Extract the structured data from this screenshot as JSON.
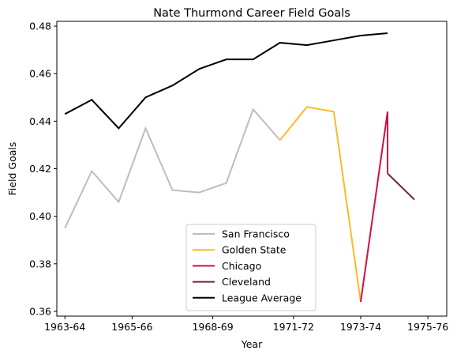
{
  "chart_data": {
    "type": "line",
    "title": "Nate Thurmond Career Field Goals",
    "xlabel": "Year",
    "ylabel": "Field Goals",
    "xlim": [
      -0.3,
      14.2
    ],
    "ylim": [
      0.358,
      0.482
    ],
    "yticks": [
      0.36,
      0.38,
      0.4,
      0.42,
      0.44,
      0.46,
      0.48
    ],
    "ytick_labels": [
      "0.36",
      "0.38",
      "0.40",
      "0.42",
      "0.44",
      "0.46",
      "0.48"
    ],
    "xticks": [
      0,
      2.5,
      5.5,
      8.5,
      11.0,
      13.5
    ],
    "xtick_labels": [
      "1963-64",
      "1965-66",
      "1968-69",
      "1971-72",
      "1973-74",
      "1975-76"
    ],
    "grid": false,
    "legend_position": "lower-center",
    "series": [
      {
        "name": "San Francisco",
        "color": "#bdbdbd",
        "x": [
          0,
          1,
          2,
          3,
          4,
          5,
          6,
          7,
          8
        ],
        "y": [
          0.395,
          0.419,
          0.406,
          0.437,
          0.411,
          0.41,
          0.414,
          0.445,
          0.432
        ]
      },
      {
        "name": "Golden State",
        "color": "#fdb927",
        "x": [
          8,
          9,
          10,
          11
        ],
        "y": [
          0.432,
          0.446,
          0.444,
          0.364
        ]
      },
      {
        "name": "Chicago",
        "color": "#ce1141",
        "x": [
          11,
          12,
          12
        ],
        "y": [
          0.364,
          0.444,
          0.418
        ]
      },
      {
        "name": "Cleveland",
        "color": "#6f263d",
        "x": [
          12,
          13
        ],
        "y": [
          0.418,
          0.407
        ]
      },
      {
        "name": "League Average",
        "color": "#000000",
        "x": [
          0,
          1,
          2,
          3,
          4,
          5,
          6,
          7,
          8,
          9,
          10,
          11,
          12
        ],
        "y": [
          0.443,
          0.449,
          0.437,
          0.45,
          0.455,
          0.462,
          0.466,
          0.466,
          0.473,
          0.472,
          0.474,
          0.476,
          0.477
        ]
      }
    ]
  }
}
